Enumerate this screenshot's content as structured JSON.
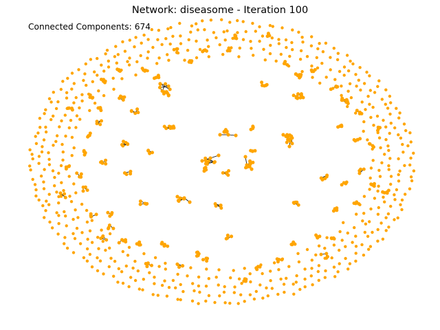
{
  "title": "Network: diseasome - Iteration 100",
  "network": {
    "name": "diseasome",
    "iteration": 100
  },
  "components": {
    "label": "Connected Components:",
    "count": "674"
  },
  "colors": {
    "node": "#ffa500",
    "edge": "#000000",
    "background": "#ffffff"
  }
}
